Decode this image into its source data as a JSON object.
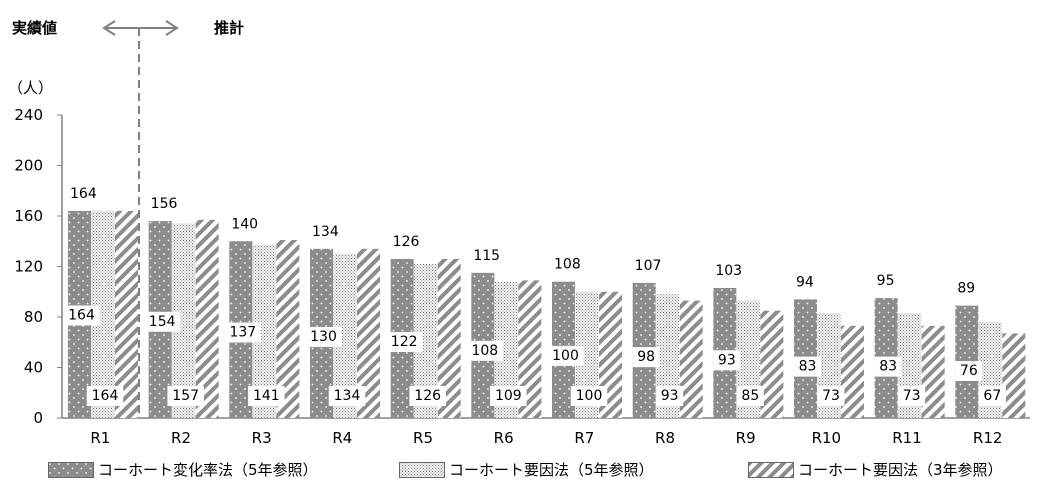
{
  "annotations": {
    "actual_label": "実績値",
    "forecast_label": "推計"
  },
  "chart_data": {
    "type": "bar",
    "ylabel": "（人）",
    "ylim": [
      0,
      240
    ],
    "yticks": [
      0,
      40,
      80,
      120,
      160,
      200,
      240
    ],
    "categories": [
      "R1",
      "R2",
      "R3",
      "R4",
      "R5",
      "R6",
      "R7",
      "R8",
      "R9",
      "R10",
      "R11",
      "R12"
    ],
    "series": [
      {
        "name": "コーホート変化率法（5年参照）",
        "pattern": "dots",
        "values": [
          164,
          156,
          140,
          134,
          126,
          115,
          108,
          107,
          103,
          94,
          95,
          89
        ]
      },
      {
        "name": "コーホート要因法（5年参照）",
        "pattern": "stipple",
        "values": [
          164,
          154,
          137,
          130,
          122,
          108,
          100,
          98,
          93,
          83,
          83,
          76
        ]
      },
      {
        "name": "コーホート要因法（3年参照）",
        "pattern": "hatch",
        "values": [
          164,
          157,
          141,
          134,
          126,
          109,
          100,
          93,
          85,
          73,
          73,
          67
        ]
      }
    ],
    "grid": false,
    "legend_position": "bottom"
  }
}
